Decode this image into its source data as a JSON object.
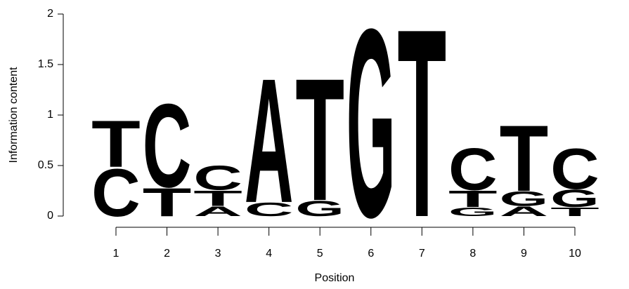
{
  "chart_data": {
    "type": "logo",
    "xlabel": "Position",
    "ylabel": "Information content",
    "xlim": [
      0.5,
      10.5
    ],
    "ylim": [
      0,
      2
    ],
    "xticks": [
      1,
      2,
      3,
      4,
      5,
      6,
      7,
      8,
      9,
      10
    ],
    "yticks": [
      0,
      0.5,
      1,
      1.5,
      2
    ],
    "colors": {
      "A": "#00dd00",
      "C": "#0000ee",
      "G": "#ffa500",
      "T": "#ff0000"
    },
    "stacks": [
      {
        "letters": [
          {
            "letter": "C",
            "value": 0.49
          },
          {
            "letter": "T",
            "value": 0.48
          }
        ]
      },
      {
        "letters": [
          {
            "letter": "T",
            "value": 0.29
          },
          {
            "letter": "C",
            "value": 0.86
          }
        ]
      },
      {
        "letters": [
          {
            "letter": "A",
            "value": 0.1
          },
          {
            "letter": "T",
            "value": 0.16
          },
          {
            "letter": "C",
            "value": 0.25
          }
        ]
      },
      {
        "letters": [
          {
            "letter": "C",
            "value": 0.14
          },
          {
            "letter": "A",
            "value": 1.28
          }
        ]
      },
      {
        "letters": [
          {
            "letter": "G",
            "value": 0.16
          },
          {
            "letter": "T",
            "value": 1.26
          }
        ]
      },
      {
        "letters": [
          {
            "letter": "G",
            "value": 1.94
          }
        ]
      },
      {
        "letters": [
          {
            "letter": "T",
            "value": 1.94
          }
        ]
      },
      {
        "letters": [
          {
            "letter": "G",
            "value": 0.09
          },
          {
            "letter": "T",
            "value": 0.17
          },
          {
            "letter": "C",
            "value": 0.43
          }
        ]
      },
      {
        "letters": [
          {
            "letter": "A",
            "value": 0.1
          },
          {
            "letter": "G",
            "value": 0.15
          },
          {
            "letter": "T",
            "value": 0.68
          }
        ]
      },
      {
        "letters": [
          {
            "letter": "T",
            "value": 0.09
          },
          {
            "letter": "G",
            "value": 0.18
          },
          {
            "letter": "C",
            "value": 0.42
          }
        ]
      }
    ]
  }
}
